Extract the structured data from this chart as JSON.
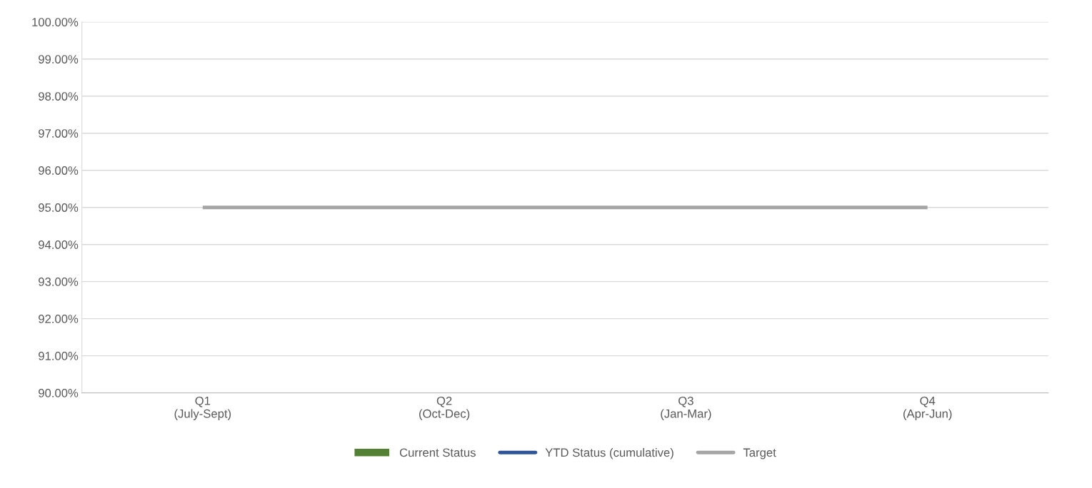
{
  "chart_data": {
    "type": "bar",
    "categories": [
      "Q1\n(July-Sept)",
      "Q2\n(Oct-Dec)",
      "Q3\n(Jan-Mar)",
      "Q4\n(Apr-Jun)"
    ],
    "series": [
      {
        "name": "Current Status",
        "color": "#548235",
        "values": [
          null,
          null,
          null,
          null
        ]
      },
      {
        "name": "YTD Status (cumulative)",
        "type": "line",
        "color": "#2f5597",
        "values": [
          null,
          null,
          null,
          null
        ]
      },
      {
        "name": "Target",
        "type": "line",
        "color": "#a5a5a5",
        "values": [
          95,
          95,
          95,
          95
        ]
      }
    ],
    "ylim": [
      90,
      100
    ],
    "yticks": [
      {
        "value": 90,
        "label": "90.00%"
      },
      {
        "value": 91,
        "label": "91.00%"
      },
      {
        "value": 92,
        "label": "92.00%"
      },
      {
        "value": 93,
        "label": "93.00%"
      },
      {
        "value": 94,
        "label": "94.00%"
      },
      {
        "value": 95,
        "label": "95.00%"
      },
      {
        "value": 96,
        "label": "96.00%"
      },
      {
        "value": 97,
        "label": "97.00%"
      },
      {
        "value": 98,
        "label": "98.00%"
      },
      {
        "value": 99,
        "label": "99.00%"
      },
      {
        "value": 100,
        "label": "100.00%"
      }
    ],
    "grid": "y",
    "legend": "bottom"
  }
}
